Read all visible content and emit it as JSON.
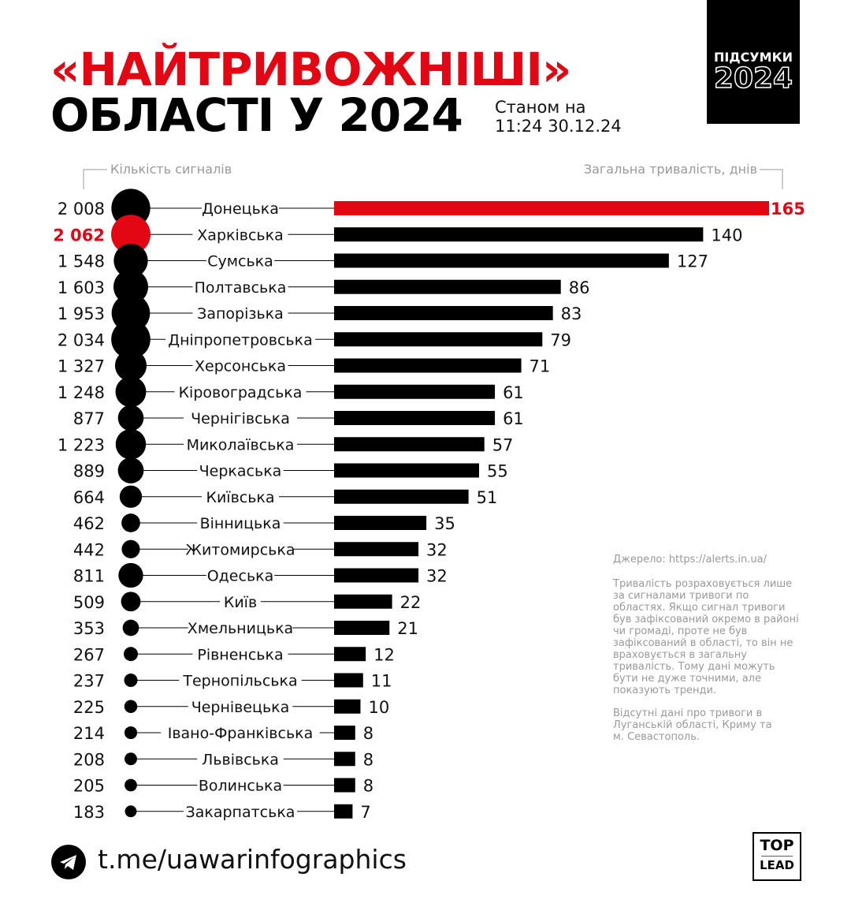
{
  "title_line1": "«НАЙТРИВОЖНІШІ»",
  "title_line2": "ОБЛАСТІ У 2024",
  "as_of": [
    "Станом на",
    "11:24 30.12.24"
  ],
  "badge": {
    "line1": "ПІДСУМКИ",
    "line2": "2024"
  },
  "source": "Джерело: https://alerts.in.ua/",
  "note1": "Тривалість розраховується лише за сигналами тривоги по областях. Якщо сигнал тривоги був зафіксований окремо в районі чи громаді, проте не був зафіксований в області, то він не враховується в загальну тривалість. Тому дані можуть бути не дуже точними, але показують тренди.",
  "note2": "Відсутні дані про тривоги в Луганській області, Криму та м. Севастополь.",
  "footer_link": "t.me/uawarinfographics",
  "logo": {
    "line1": "TOP",
    "line2": "LEAD"
  },
  "colors": {
    "highlight": "#e30613",
    "default": "#000000"
  },
  "chart_data": {
    "type": "bar",
    "orientation": "horizontal",
    "left_label": "Кількість сигналів",
    "right_label": "Загальна тривалість, днів",
    "categories": [
      "Донецька",
      "Харківська",
      "Сумська",
      "Полтавська",
      "Запорізька",
      "Дніпропетровська",
      "Херсонська",
      "Кіровоградська",
      "Чернігівська",
      "Миколаївська",
      "Черкаська",
      "Київська",
      "Вінницька",
      "Житомирська",
      "Одеська",
      "Київ",
      "Хмельницька",
      "Рівненська",
      "Тернопільська",
      "Чернівецька",
      "Івано-Франківська",
      "Львівська",
      "Волинська",
      "Закарпатська"
    ],
    "signals": [
      2008,
      2062,
      1548,
      1603,
      1953,
      2034,
      1327,
      1248,
      877,
      1223,
      889,
      664,
      462,
      442,
      811,
      509,
      353,
      267,
      237,
      225,
      214,
      208,
      205,
      183
    ],
    "signals_labels": [
      "2 008",
      "2 062",
      "1 548",
      "1 603",
      "1 953",
      "2 034",
      "1 327",
      "1 248",
      "877",
      "1 223",
      "889",
      "664",
      "462",
      "442",
      "811",
      "509",
      "353",
      "267",
      "237",
      "225",
      "214",
      "208",
      "205",
      "183"
    ],
    "duration_days": [
      165,
      140,
      127,
      86,
      83,
      79,
      71,
      61,
      61,
      57,
      55,
      51,
      35,
      32,
      32,
      22,
      21,
      12,
      11,
      10,
      8,
      8,
      8,
      7
    ],
    "highlight_max_duration": "Донецька",
    "highlight_max_signals": "Харківська",
    "xlim": [
      0,
      165
    ]
  }
}
